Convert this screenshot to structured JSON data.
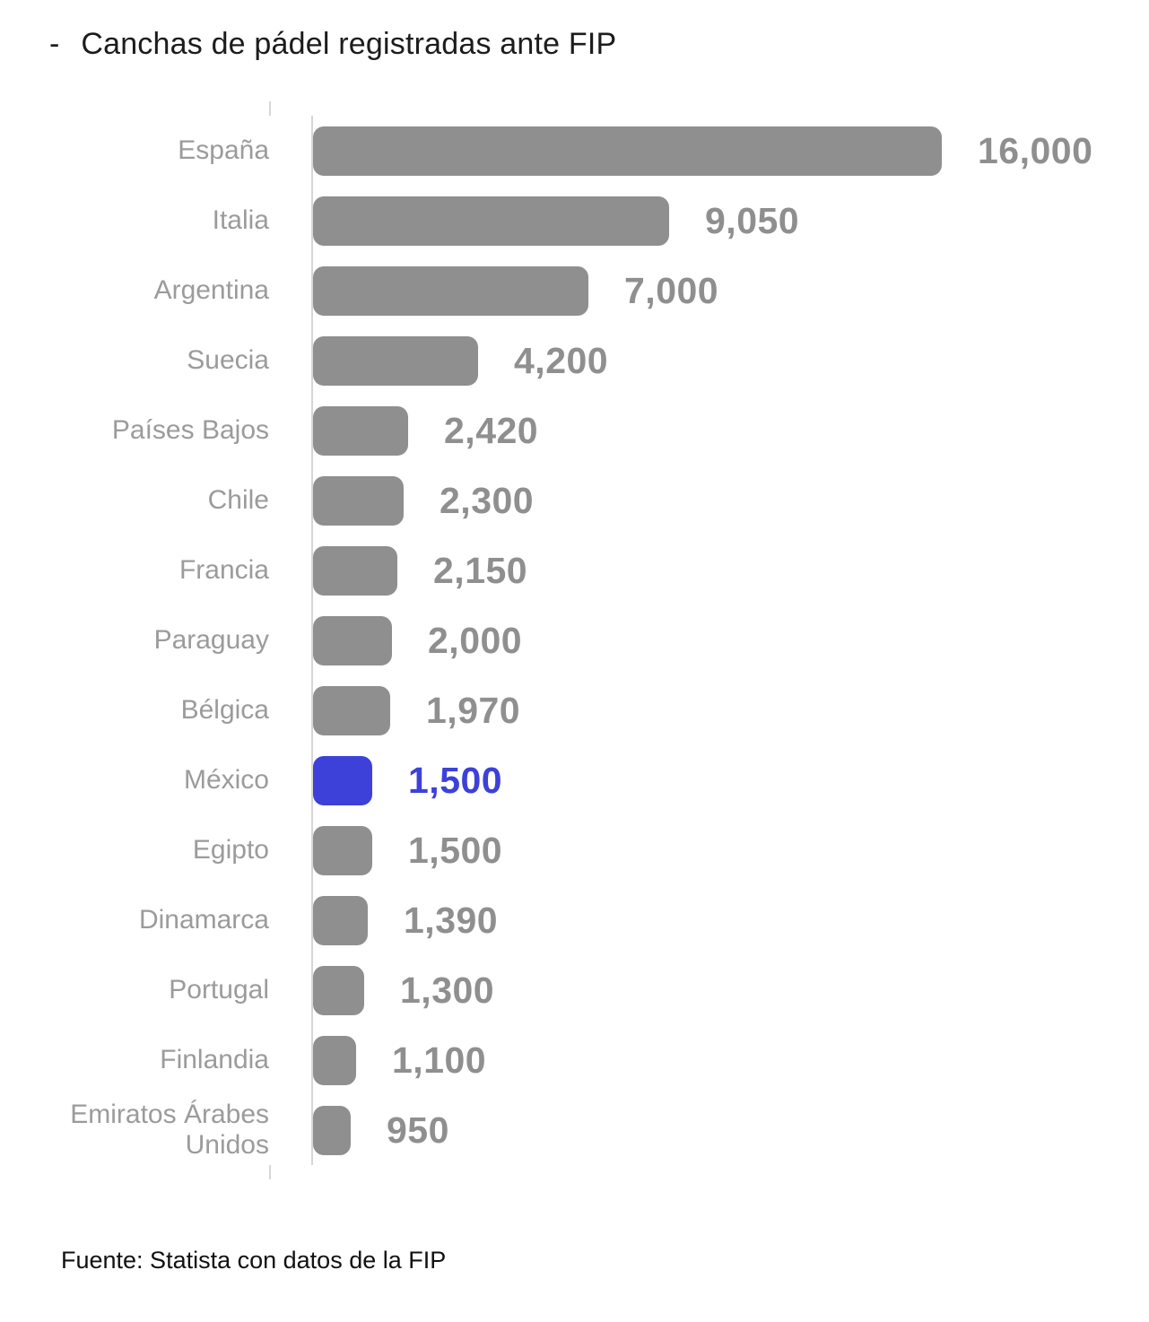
{
  "title": {
    "bullet": "-",
    "text": "Canchas de pádel registradas ante FIP"
  },
  "source": "Fuente: Statista con datos de la FIP",
  "colors": {
    "bar": "#8f8f8f",
    "highlight": "#3d41da",
    "label": "#9b9b9b",
    "value": "#8f8f8f",
    "axis": "#d6d6d6",
    "title": "#1c1c1c"
  },
  "chart_data": {
    "type": "bar",
    "orientation": "horizontal",
    "title": "Canchas de pádel registradas ante FIP",
    "categories": [
      "España",
      "Italia",
      "Argentina",
      "Suecia",
      "Países Bajos",
      "Chile",
      "Francia",
      "Paraguay",
      "Bélgica",
      "México",
      "Egipto",
      "Dinamarca",
      "Portugal",
      "Finlandia",
      "Emiratos Árabes Unidos"
    ],
    "values": [
      16000,
      9050,
      7000,
      4200,
      2420,
      2300,
      2150,
      2000,
      1970,
      1500,
      1500,
      1390,
      1300,
      1100,
      950
    ],
    "value_labels": [
      "16,000",
      "9,050",
      "7,000",
      "4,200",
      "2,420",
      "2,300",
      "2,150",
      "2,000",
      "1,970",
      "1,500",
      "1,500",
      "1,390",
      "1,300",
      "1,100",
      "950"
    ],
    "highlighted_category": "México",
    "highlight_index": 9,
    "xlabel": "",
    "ylabel": "",
    "xlim": [
      0,
      16000
    ],
    "grid": false,
    "legend": false
  }
}
